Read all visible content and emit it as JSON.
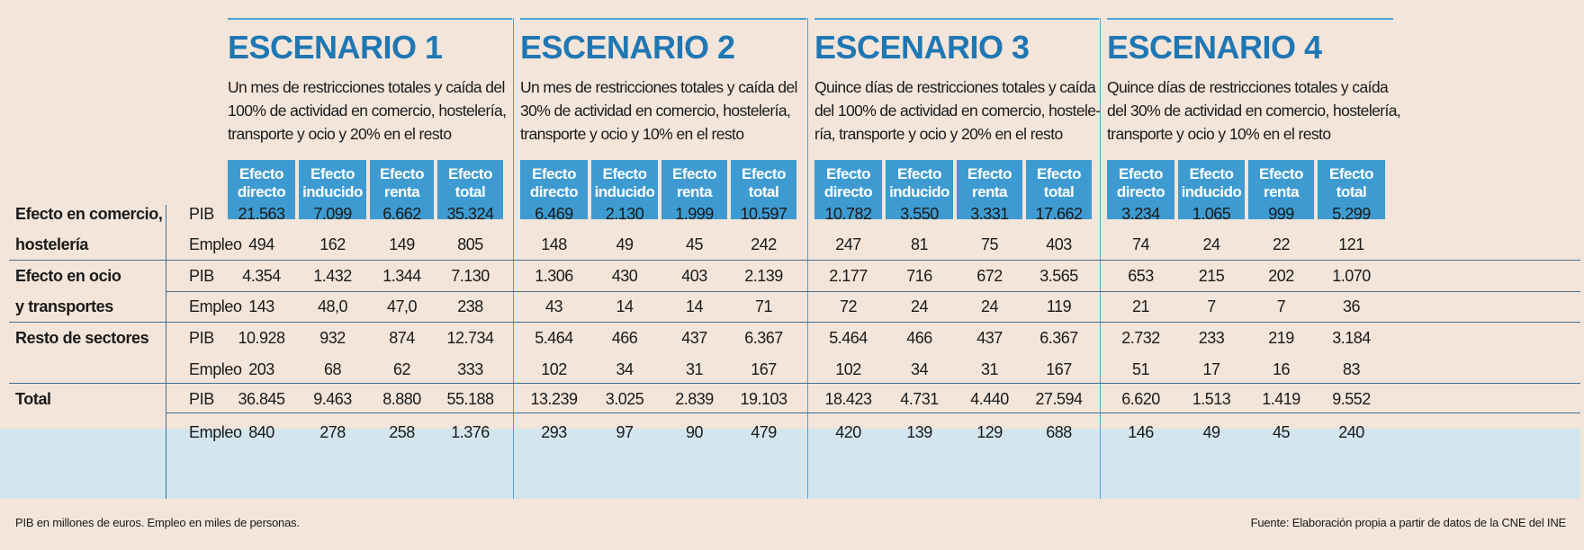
{
  "scenarios": [
    {
      "title": "ESCENARIO 1",
      "desc_lines": [
        "Un mes de restricciones totales y caída del",
        "100% de actividad en comercio, hostelería,",
        "transporte y ocio y 20% en el resto"
      ]
    },
    {
      "title": "ESCENARIO 2",
      "desc_lines": [
        "Un mes de restricciones totales y caída del",
        "30% de actividad en comercio, hostelería,",
        "transporte y ocio y 10% en el resto"
      ]
    },
    {
      "title": "ESCENARIO 3",
      "desc_lines": [
        "Quince días de restricciones totales y caída",
        "del 100% de actividad en comercio, hostele-",
        "ría, transporte y ocio y 20% en el resto"
      ]
    },
    {
      "title": "ESCENARIO 4",
      "desc_lines": [
        "Quince días de restricciones totales y caída",
        "del 30% de actividad en comercio, hostelería,",
        "transporte y ocio y 10% en el resto"
      ]
    }
  ],
  "column_headers": [
    [
      "Efecto",
      "directo"
    ],
    [
      "Efecto",
      "inducido"
    ],
    [
      "Efecto",
      "renta"
    ],
    [
      "Efecto",
      "total"
    ]
  ],
  "groups": [
    {
      "label_lines": [
        "Efecto en comercio,",
        "hostelería"
      ],
      "rows": [
        {
          "metric": "PIB",
          "values": [
            "21.563",
            "7.099",
            "6.662",
            "35.324",
            "6.469",
            "2.130",
            "1.999",
            "10.597",
            "10.782",
            "3.550",
            "3.331",
            "17.662",
            "3.234",
            "1.065",
            "999",
            "5.299"
          ]
        },
        {
          "metric": "Empleo",
          "values": [
            "494",
            "162",
            "149",
            "805",
            "148",
            "49",
            "45",
            "242",
            "247",
            "81",
            "75",
            "403",
            "74",
            "24",
            "22",
            "121"
          ]
        }
      ]
    },
    {
      "label_lines": [
        "Efecto en ocio",
        "y transportes"
      ],
      "rows": [
        {
          "metric": "PIB",
          "values": [
            "4.354",
            "1.432",
            "1.344",
            "7.130",
            "1.306",
            "430",
            "403",
            "2.139",
            "2.177",
            "716",
            "672",
            "3.565",
            "653",
            "215",
            "202",
            "1.070"
          ]
        },
        {
          "metric": "Empleo",
          "values": [
            "143",
            "48,0",
            "47,0",
            "238",
            "43",
            "14",
            "14",
            "71",
            "72",
            "24",
            "24",
            "119",
            "21",
            "7",
            "7",
            "36"
          ]
        }
      ]
    },
    {
      "label_lines": [
        "Resto de sectores"
      ],
      "rows": [
        {
          "metric": "PIB",
          "values": [
            "10.928",
            "932",
            "874",
            "12.734",
            "5.464",
            "466",
            "437",
            "6.367",
            "5.464",
            "466",
            "437",
            "6.367",
            "2.732",
            "233",
            "219",
            "3.184"
          ]
        },
        {
          "metric": "Empleo",
          "values": [
            "203",
            "68",
            "62",
            "333",
            "102",
            "34",
            "31",
            "167",
            "102",
            "34",
            "31",
            "167",
            "51",
            "17",
            "16",
            "83"
          ]
        }
      ]
    },
    {
      "label_lines": [
        "Total"
      ],
      "rows": [
        {
          "metric": "PIB",
          "values": [
            "36.845",
            "9.463",
            "8.880",
            "55.188",
            "13.239",
            "3.025",
            "2.839",
            "19.103",
            "18.423",
            "4.731",
            "4.440",
            "27.594",
            "6.620",
            "1.513",
            "1.419",
            "9.552"
          ]
        },
        {
          "metric": "Empleo",
          "values": [
            "840",
            "278",
            "258",
            "1.376",
            "293",
            "97",
            "90",
            "479",
            "420",
            "139",
            "129",
            "688",
            "146",
            "49",
            "45",
            "240"
          ]
        }
      ]
    }
  ],
  "footnote_left": "PIB en millones de euros. Empleo en miles de personas.",
  "footnote_right": "Fuente: Elaboración propia a partir de datos de la CNE del INE",
  "colors": {
    "accent": "#3d9bd1",
    "title": "#1f77b4",
    "background": "#f3e5da",
    "total_band": "#d3e5ef"
  }
}
